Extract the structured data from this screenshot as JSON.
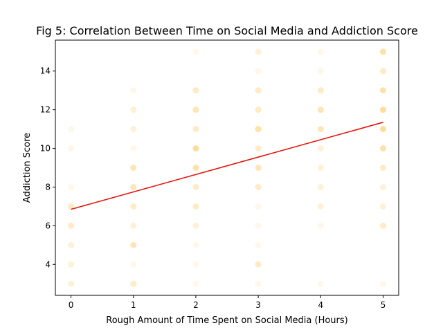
{
  "chart_data": {
    "type": "scatter",
    "title": "Fig 5: Correlation Between Time on Social Media and Addiction Score",
    "xlabel": "Rough Amount of Time Spent on Social Media (Hours)",
    "ylabel": "Addiction Score",
    "xlim": [
      -0.25,
      5.25
    ],
    "ylim": [
      2.4,
      15.6
    ],
    "xticks": [
      0,
      1,
      2,
      3,
      4,
      5
    ],
    "yticks": [
      4,
      6,
      8,
      10,
      12,
      14
    ],
    "grid": false,
    "point_color": "#ffc04d",
    "line_color": "#e8160e",
    "points": [
      {
        "x": 0,
        "y": 3,
        "n": 2
      },
      {
        "x": 0,
        "y": 4,
        "n": 2
      },
      {
        "x": 0,
        "y": 5,
        "n": 2
      },
      {
        "x": 0,
        "y": 6,
        "n": 3
      },
      {
        "x": 0,
        "y": 7,
        "n": 3
      },
      {
        "x": 0,
        "y": 8,
        "n": 1
      },
      {
        "x": 0,
        "y": 10,
        "n": 1
      },
      {
        "x": 0,
        "y": 11,
        "n": 1
      },
      {
        "x": 1,
        "y": 3,
        "n": 3
      },
      {
        "x": 1,
        "y": 4,
        "n": 1
      },
      {
        "x": 1,
        "y": 5,
        "n": 4
      },
      {
        "x": 1,
        "y": 6,
        "n": 2
      },
      {
        "x": 1,
        "y": 7,
        "n": 3
      },
      {
        "x": 1,
        "y": 8,
        "n": 4
      },
      {
        "x": 1,
        "y": 9,
        "n": 4
      },
      {
        "x": 1,
        "y": 10,
        "n": 1
      },
      {
        "x": 1,
        "y": 11,
        "n": 2
      },
      {
        "x": 1,
        "y": 12,
        "n": 2
      },
      {
        "x": 1,
        "y": 13,
        "n": 1
      },
      {
        "x": 2,
        "y": 3,
        "n": 1
      },
      {
        "x": 2,
        "y": 4,
        "n": 1
      },
      {
        "x": 2,
        "y": 5,
        "n": 1
      },
      {
        "x": 2,
        "y": 6,
        "n": 2
      },
      {
        "x": 2,
        "y": 7,
        "n": 3
      },
      {
        "x": 2,
        "y": 8,
        "n": 3
      },
      {
        "x": 2,
        "y": 9,
        "n": 5
      },
      {
        "x": 2,
        "y": 10,
        "n": 6
      },
      {
        "x": 2,
        "y": 11,
        "n": 3
      },
      {
        "x": 2,
        "y": 12,
        "n": 4
      },
      {
        "x": 2,
        "y": 13,
        "n": 3
      },
      {
        "x": 2,
        "y": 15,
        "n": 1
      },
      {
        "x": 3,
        "y": 3,
        "n": 1
      },
      {
        "x": 3,
        "y": 4,
        "n": 3
      },
      {
        "x": 3,
        "y": 5,
        "n": 1
      },
      {
        "x": 3,
        "y": 6,
        "n": 1
      },
      {
        "x": 3,
        "y": 7,
        "n": 1
      },
      {
        "x": 3,
        "y": 8,
        "n": 3
      },
      {
        "x": 3,
        "y": 9,
        "n": 4
      },
      {
        "x": 3,
        "y": 10,
        "n": 3
      },
      {
        "x": 3,
        "y": 11,
        "n": 5
      },
      {
        "x": 3,
        "y": 12,
        "n": 3
      },
      {
        "x": 3,
        "y": 13,
        "n": 3
      },
      {
        "x": 3,
        "y": 14,
        "n": 1
      },
      {
        "x": 3,
        "y": 15,
        "n": 2
      },
      {
        "x": 4,
        "y": 3,
        "n": 1
      },
      {
        "x": 4,
        "y": 6,
        "n": 1
      },
      {
        "x": 4,
        "y": 7,
        "n": 2
      },
      {
        "x": 4,
        "y": 8,
        "n": 2
      },
      {
        "x": 4,
        "y": 9,
        "n": 2
      },
      {
        "x": 4,
        "y": 10,
        "n": 2
      },
      {
        "x": 4,
        "y": 11,
        "n": 4
      },
      {
        "x": 4,
        "y": 12,
        "n": 4
      },
      {
        "x": 4,
        "y": 13,
        "n": 3
      },
      {
        "x": 4,
        "y": 14,
        "n": 1
      },
      {
        "x": 4,
        "y": 15,
        "n": 1
      },
      {
        "x": 5,
        "y": 3,
        "n": 1
      },
      {
        "x": 5,
        "y": 6,
        "n": 3
      },
      {
        "x": 5,
        "y": 7,
        "n": 2
      },
      {
        "x": 5,
        "y": 8,
        "n": 2
      },
      {
        "x": 5,
        "y": 9,
        "n": 3
      },
      {
        "x": 5,
        "y": 10,
        "n": 5
      },
      {
        "x": 5,
        "y": 11,
        "n": 6
      },
      {
        "x": 5,
        "y": 12,
        "n": 6
      },
      {
        "x": 5,
        "y": 13,
        "n": 5
      },
      {
        "x": 5,
        "y": 14,
        "n": 3
      },
      {
        "x": 5,
        "y": 15,
        "n": 5
      }
    ],
    "trendline": {
      "x": [
        0,
        5
      ],
      "y": [
        6.85,
        11.35
      ]
    }
  }
}
